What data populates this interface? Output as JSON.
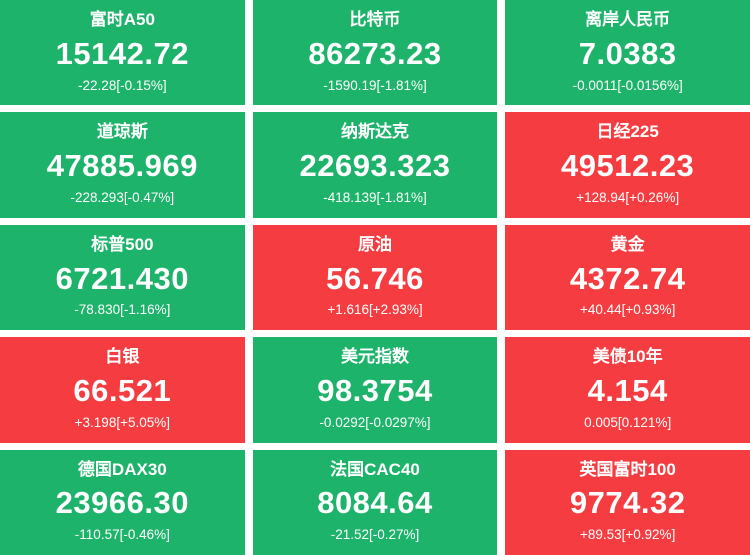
{
  "colors": {
    "down": "#1db36a",
    "up": "#f53d41",
    "text": "#ffffff",
    "background": "#ffffff"
  },
  "tiles": [
    {
      "name": "富时A50",
      "price": "15142.72",
      "change": "-22.28[-0.15%]",
      "direction": "down"
    },
    {
      "name": "比特币",
      "price": "86273.23",
      "change": "-1590.19[-1.81%]",
      "direction": "down"
    },
    {
      "name": "离岸人民币",
      "price": "7.0383",
      "change": "-0.0011[-0.0156%]",
      "direction": "down"
    },
    {
      "name": "道琼斯",
      "price": "47885.969",
      "change": "-228.293[-0.47%]",
      "direction": "down"
    },
    {
      "name": "纳斯达克",
      "price": "22693.323",
      "change": "-418.139[-1.81%]",
      "direction": "down"
    },
    {
      "name": "日经225",
      "price": "49512.23",
      "change": "+128.94[+0.26%]",
      "direction": "up"
    },
    {
      "name": "标普500",
      "price": "6721.430",
      "change": "-78.830[-1.16%]",
      "direction": "down"
    },
    {
      "name": "原油",
      "price": "56.746",
      "change": "+1.616[+2.93%]",
      "direction": "up"
    },
    {
      "name": "黄金",
      "price": "4372.74",
      "change": "+40.44[+0.93%]",
      "direction": "up"
    },
    {
      "name": "白银",
      "price": "66.521",
      "change": "+3.198[+5.05%]",
      "direction": "up"
    },
    {
      "name": "美元指数",
      "price": "98.3754",
      "change": "-0.0292[-0.0297%]",
      "direction": "down"
    },
    {
      "name": "美债10年",
      "price": "4.154",
      "change": "0.005[0.121%]",
      "direction": "up"
    },
    {
      "name": "德国DAX30",
      "price": "23966.30",
      "change": "-110.57[-0.46%]",
      "direction": "down"
    },
    {
      "name": "法国CAC40",
      "price": "8084.64",
      "change": "-21.52[-0.27%]",
      "direction": "down"
    },
    {
      "name": "英国富时100",
      "price": "9774.32",
      "change": "+89.53[+0.92%]",
      "direction": "up"
    }
  ]
}
